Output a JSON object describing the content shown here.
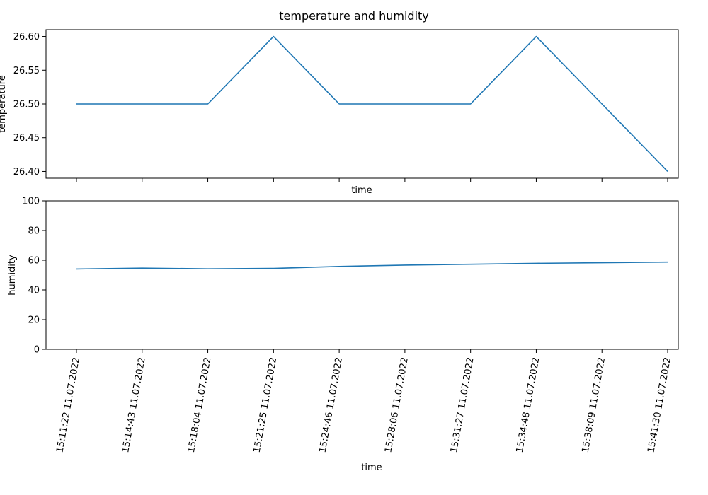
{
  "title": "temperature and humidity",
  "colors": {
    "series": "#1f77b4"
  },
  "chart_data": [
    {
      "type": "line",
      "xlabel": "time",
      "ylabel": "temperature",
      "categories": [
        "15:11:22 11.07.2022",
        "15:14:43 11.07.2022",
        "15:18:04 11.07.2022",
        "15:21:25 11.07.2022",
        "15:24:46 11.07.2022",
        "15:28:06 11.07.2022",
        "15:31:27 11.07.2022",
        "15:34:48 11.07.2022",
        "15:38:09 11.07.2022",
        "15:41:30 11.07.2022"
      ],
      "values": [
        26.5,
        26.5,
        26.5,
        26.6,
        26.5,
        26.5,
        26.5,
        26.6,
        26.5,
        26.4
      ],
      "ylim": [
        26.39,
        26.61
      ],
      "yticks": [
        "26.40",
        "26.45",
        "26.50",
        "26.55",
        "26.60"
      ],
      "show_x_tick_labels": false,
      "grid": false
    },
    {
      "type": "line",
      "xlabel": "time",
      "ylabel": "humidity",
      "categories": [
        "15:11:22 11.07.2022",
        "15:14:43 11.07.2022",
        "15:18:04 11.07.2022",
        "15:21:25 11.07.2022",
        "15:24:46 11.07.2022",
        "15:28:06 11.07.2022",
        "15:31:27 11.07.2022",
        "15:34:48 11.07.2022",
        "15:38:09 11.07.2022",
        "15:41:30 11.07.2022"
      ],
      "values": [
        54.1,
        54.7,
        54.2,
        54.5,
        55.8,
        56.7,
        57.3,
        57.9,
        58.3,
        58.7
      ],
      "ylim": [
        0,
        100
      ],
      "yticks": [
        "0",
        "20",
        "40",
        "60",
        "80",
        "100"
      ],
      "show_x_tick_labels": true,
      "grid": false
    }
  ]
}
